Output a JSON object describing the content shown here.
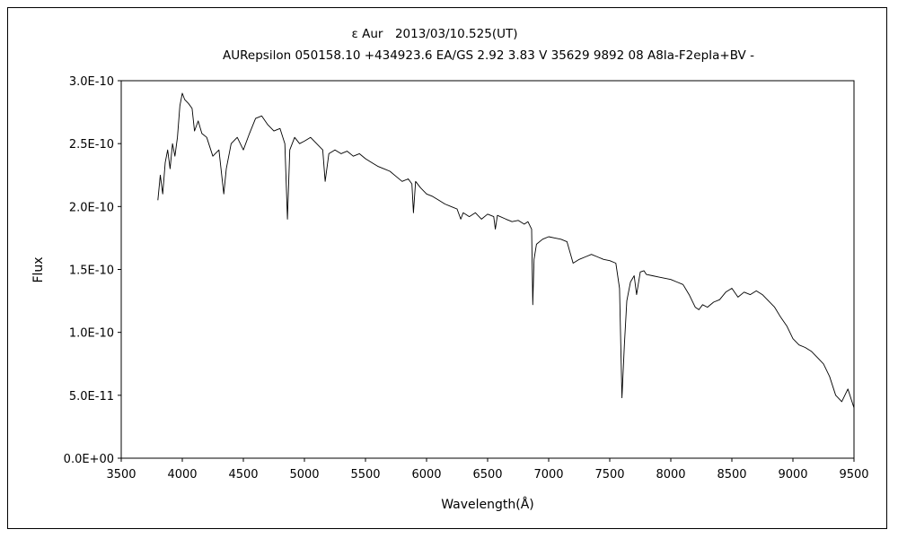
{
  "chart_data": {
    "type": "line",
    "title": "ε Aur　2013/03/10.525(UT)",
    "subtitle": "AURepsilon 050158.10 +434923.6 EA/GS 2.92 3.83 V 35629 9892 08 A8Ia-F2epIa+BV -",
    "xlabel": "Wavelength(Å)",
    "ylabel": "Flux",
    "xlim": [
      3500,
      9500
    ],
    "ylim": [
      0,
      3e-10
    ],
    "x_ticks": [
      3500,
      4000,
      4500,
      5000,
      5500,
      6000,
      6500,
      7000,
      7500,
      8000,
      8500,
      9000,
      9500
    ],
    "x_tick_labels": [
      "3500",
      "4000",
      "4500",
      "5000",
      "5500",
      "6000",
      "6500",
      "7000",
      "7500",
      "8000",
      "8500",
      "9000",
      "9500"
    ],
    "y_ticks": [
      0,
      5e-11,
      1e-10,
      1.5e-10,
      2e-10,
      2.5e-10,
      3e-10
    ],
    "y_tick_labels": [
      "0.0E+00",
      "5.0E-11",
      "1.0E-10",
      "1.5E-10",
      "2.0E-10",
      "2.5E-10",
      "3.0E-10"
    ],
    "grid": false,
    "legend": "none",
    "series": [
      {
        "color": "#000000",
        "x": [
          3800,
          3820,
          3840,
          3860,
          3880,
          3900,
          3920,
          3940,
          3960,
          3980,
          4000,
          4020,
          4050,
          4080,
          4100,
          4130,
          4160,
          4200,
          4250,
          4300,
          4340,
          4360,
          4400,
          4450,
          4500,
          4550,
          4600,
          4650,
          4700,
          4750,
          4800,
          4840,
          4861,
          4880,
          4920,
          4960,
          5000,
          5050,
          5100,
          5150,
          5170,
          5200,
          5250,
          5300,
          5350,
          5400,
          5450,
          5500,
          5550,
          5600,
          5650,
          5700,
          5750,
          5800,
          5850,
          5880,
          5893,
          5910,
          5950,
          6000,
          6050,
          6100,
          6150,
          6200,
          6250,
          6280,
          6300,
          6350,
          6400,
          6450,
          6500,
          6550,
          6563,
          6580,
          6650,
          6700,
          6750,
          6800,
          6830,
          6860,
          6870,
          6880,
          6900,
          6950,
          7000,
          7050,
          7100,
          7150,
          7200,
          7250,
          7300,
          7350,
          7400,
          7450,
          7500,
          7550,
          7580,
          7600,
          7620,
          7640,
          7670,
          7700,
          7720,
          7750,
          7780,
          7800,
          7850,
          7900,
          7950,
          8000,
          8050,
          8100,
          8150,
          8200,
          8230,
          8260,
          8300,
          8350,
          8400,
          8450,
          8500,
          8550,
          8600,
          8650,
          8700,
          8750,
          8800,
          8850,
          8900,
          8950,
          9000,
          9050,
          9100,
          9150,
          9200,
          9250,
          9300,
          9350,
          9400,
          9450,
          9500
        ],
        "values": [
          2.05e-10,
          2.25e-10,
          2.1e-10,
          2.35e-10,
          2.45e-10,
          2.3e-10,
          2.5e-10,
          2.4e-10,
          2.55e-10,
          2.8e-10,
          2.9e-10,
          2.85e-10,
          2.82e-10,
          2.78e-10,
          2.6e-10,
          2.68e-10,
          2.58e-10,
          2.55e-10,
          2.4e-10,
          2.45e-10,
          2.1e-10,
          2.3e-10,
          2.5e-10,
          2.55e-10,
          2.45e-10,
          2.58e-10,
          2.7e-10,
          2.72e-10,
          2.65e-10,
          2.6e-10,
          2.62e-10,
          2.5e-10,
          1.9e-10,
          2.45e-10,
          2.55e-10,
          2.5e-10,
          2.52e-10,
          2.55e-10,
          2.5e-10,
          2.45e-10,
          2.2e-10,
          2.42e-10,
          2.45e-10,
          2.42e-10,
          2.44e-10,
          2.4e-10,
          2.42e-10,
          2.38e-10,
          2.35e-10,
          2.32e-10,
          2.3e-10,
          2.28e-10,
          2.24e-10,
          2.2e-10,
          2.22e-10,
          2.18e-10,
          1.95e-10,
          2.2e-10,
          2.15e-10,
          2.1e-10,
          2.08e-10,
          2.05e-10,
          2.02e-10,
          2e-10,
          1.98e-10,
          1.9e-10,
          1.95e-10,
          1.92e-10,
          1.95e-10,
          1.9e-10,
          1.94e-10,
          1.92e-10,
          1.82e-10,
          1.93e-10,
          1.9e-10,
          1.88e-10,
          1.89e-10,
          1.86e-10,
          1.88e-10,
          1.82e-10,
          1.22e-10,
          1.58e-10,
          1.7e-10,
          1.74e-10,
          1.76e-10,
          1.75e-10,
          1.74e-10,
          1.72e-10,
          1.55e-10,
          1.58e-10,
          1.6e-10,
          1.62e-10,
          1.6e-10,
          1.58e-10,
          1.57e-10,
          1.55e-10,
          1.35e-10,
          4.8e-11,
          9e-11,
          1.25e-10,
          1.4e-10,
          1.45e-10,
          1.3e-10,
          1.48e-10,
          1.49e-10,
          1.46e-10,
          1.45e-10,
          1.44e-10,
          1.43e-10,
          1.42e-10,
          1.4e-10,
          1.38e-10,
          1.3e-10,
          1.2e-10,
          1.18e-10,
          1.22e-10,
          1.2e-10,
          1.24e-10,
          1.26e-10,
          1.32e-10,
          1.35e-10,
          1.28e-10,
          1.32e-10,
          1.3e-10,
          1.33e-10,
          1.3e-10,
          1.25e-10,
          1.2e-10,
          1.12e-10,
          1.05e-10,
          9.5e-11,
          9e-11,
          8.8e-11,
          8.5e-11,
          8e-11,
          7.5e-11,
          6.5e-11,
          5e-11,
          4.5e-11,
          5.5e-11,
          4e-11
        ]
      }
    ]
  }
}
